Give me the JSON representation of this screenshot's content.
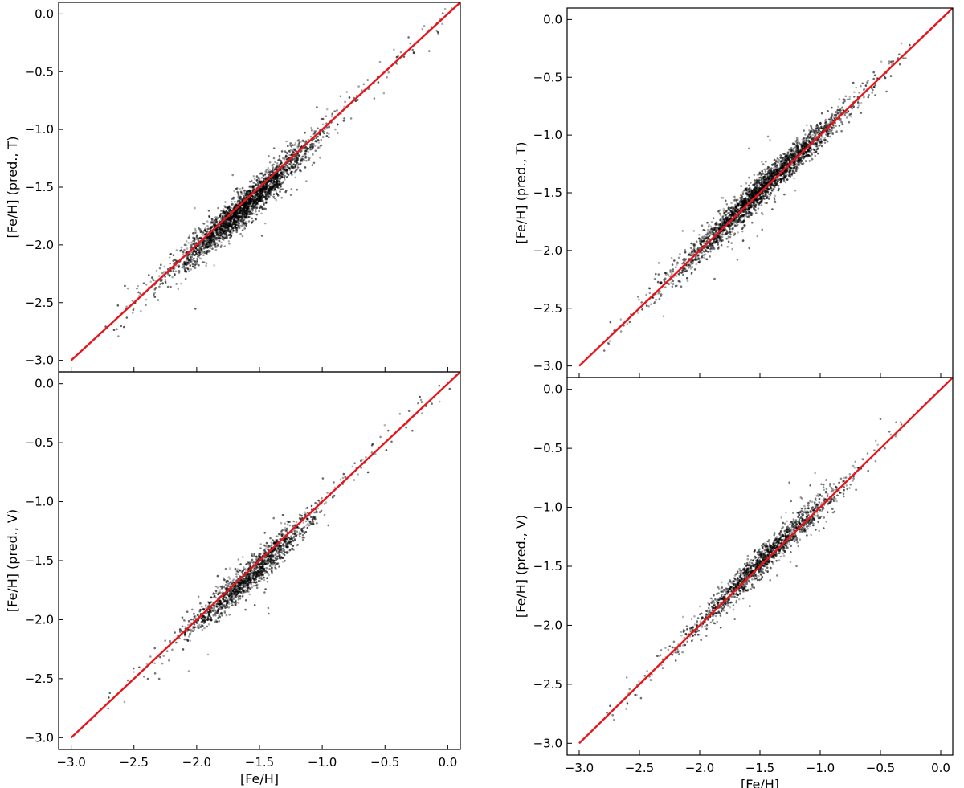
{
  "chart_data": [
    {
      "type": "scatter",
      "id": "left-top",
      "xlabel": "",
      "ylabel": "[Fe/H] (pred., T)",
      "xlim": [
        -3.1,
        0.1
      ],
      "ylim": [
        -3.1,
        0.1
      ],
      "xticks": [
        -3.0,
        -2.5,
        -2.0,
        -1.5,
        -1.0,
        -0.5,
        0.0
      ],
      "yticks": [
        -3.0,
        -2.5,
        -2.0,
        -1.5,
        -1.0,
        -0.5,
        0.0
      ],
      "xtick_labels": [
        "−3.0",
        "−2.5",
        "−2.0",
        "−1.5",
        "−1.0",
        "−0.5",
        "0.0"
      ],
      "ytick_labels": [
        "−3.0",
        "−2.5",
        "−2.0",
        "−1.5",
        "−1.0",
        "−0.5",
        "0.0"
      ],
      "show_xtick_labels": false,
      "grid": false,
      "reference_line": {
        "x": [
          -3.0,
          0.1
        ],
        "y": [
          -3.0,
          0.1
        ],
        "color": "#e8141a"
      },
      "point_color": "#000000",
      "distribution": {
        "x_center": -1.62,
        "x_spread": 0.28,
        "x_min": -2.75,
        "x_max": 0.05,
        "scatter_sd": 0.07,
        "offset": -0.06,
        "density": "high"
      }
    },
    {
      "type": "scatter",
      "id": "left-bottom",
      "xlabel": "[Fe/H]",
      "ylabel": "[Fe/H] (pred., V)",
      "xlim": [
        -3.1,
        0.1
      ],
      "ylim": [
        -3.1,
        0.1
      ],
      "xticks": [
        -3.0,
        -2.5,
        -2.0,
        -1.5,
        -1.0,
        -0.5,
        0.0
      ],
      "yticks": [
        -3.0,
        -2.5,
        -2.0,
        -1.5,
        -1.0,
        -0.5,
        0.0
      ],
      "xtick_labels": [
        "−3.0",
        "−2.5",
        "−2.0",
        "−1.5",
        "−1.0",
        "−0.5",
        "0.0"
      ],
      "ytick_labels": [
        "−3.0",
        "−2.5",
        "−2.0",
        "−1.5",
        "−1.0",
        "−0.5",
        "0.0"
      ],
      "show_xtick_labels": true,
      "grid": false,
      "reference_line": {
        "x": [
          -3.0,
          0.1
        ],
        "y": [
          -3.0,
          0.1
        ],
        "color": "#e8141a"
      },
      "point_color": "#000000",
      "distribution": {
        "x_center": -1.58,
        "x_spread": 0.26,
        "x_min": -2.75,
        "x_max": 0.05,
        "scatter_sd": 0.065,
        "offset": -0.06,
        "density": "medium"
      }
    },
    {
      "type": "scatter",
      "id": "right-top",
      "xlabel": "",
      "ylabel": "[Fe/H] (pred., T)",
      "xlim": [
        -3.1,
        0.1
      ],
      "ylim": [
        -3.1,
        0.1
      ],
      "xticks": [
        -3.0,
        -2.5,
        -2.0,
        -1.5,
        -1.0,
        -0.5,
        0.0
      ],
      "yticks": [
        -3.0,
        -2.5,
        -2.0,
        -1.5,
        -1.0,
        -0.5,
        0.0
      ],
      "xtick_labels": [
        "−3.0",
        "−2.5",
        "−2.0",
        "−1.5",
        "−1.0",
        "−0.5",
        "0.0"
      ],
      "ytick_labels": [
        "−3.0",
        "−2.5",
        "−2.0",
        "−1.5",
        "−1.0",
        "−0.5",
        "0.0"
      ],
      "show_xtick_labels": false,
      "grid": false,
      "reference_line": {
        "x": [
          -3.0,
          0.1
        ],
        "y": [
          -3.0,
          0.1
        ],
        "color": "#e8141a"
      },
      "point_color": "#000000",
      "distribution": {
        "x_center": -1.48,
        "x_spread": 0.34,
        "x_min": -2.8,
        "x_max": -0.25,
        "scatter_sd": 0.065,
        "offset": 0.02,
        "density": "high"
      }
    },
    {
      "type": "scatter",
      "id": "right-bottom",
      "xlabel": "[Fe/H]",
      "ylabel": "[Fe/H] (pred., V)",
      "xlim": [
        -3.1,
        0.1
      ],
      "ylim": [
        -3.1,
        0.1
      ],
      "xticks": [
        -3.0,
        -2.5,
        -2.0,
        -1.5,
        -1.0,
        -0.5,
        0.0
      ],
      "yticks": [
        -3.0,
        -2.5,
        -2.0,
        -1.5,
        -1.0,
        -0.5,
        0.0
      ],
      "xtick_labels": [
        "−3.0",
        "−2.5",
        "−2.0",
        "−1.5",
        "−1.0",
        "−0.5",
        "0.0"
      ],
      "ytick_labels": [
        "−3.0",
        "−2.5",
        "−2.0",
        "−1.5",
        "−1.0",
        "−0.5",
        "0.0"
      ],
      "show_xtick_labels": true,
      "grid": false,
      "reference_line": {
        "x": [
          -3.0,
          0.1
        ],
        "y": [
          -3.0,
          0.1
        ],
        "color": "#e8141a"
      },
      "point_color": "#000000",
      "distribution": {
        "x_center": -1.45,
        "x_spread": 0.32,
        "x_min": -2.8,
        "x_max": -0.25,
        "scatter_sd": 0.06,
        "offset": 0.03,
        "density": "medium"
      }
    }
  ]
}
